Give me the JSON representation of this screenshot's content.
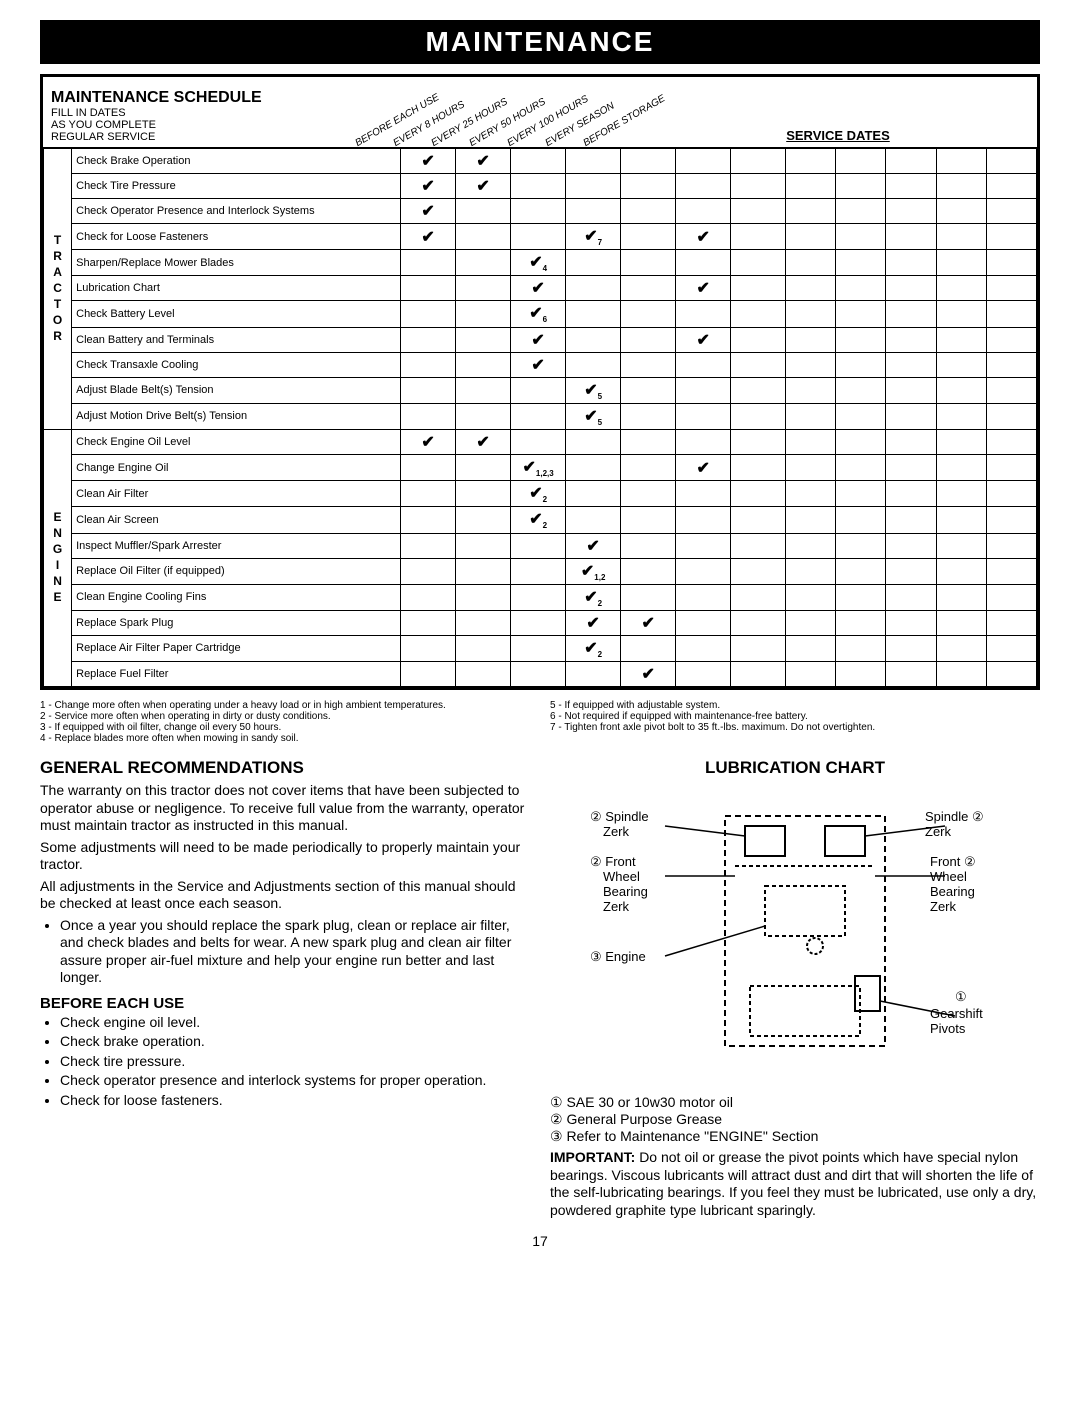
{
  "banner": "MAINTENANCE",
  "schedule": {
    "title": "MAINTENANCE SCHEDULE",
    "subtitle": "FILL IN DATES\nAS YOU COMPLETE\nREGULAR SERVICE",
    "col_headers": [
      "BEFORE EACH USE",
      "EVERY 8 HOURS",
      "EVERY 25 HOURS",
      "EVERY 50 HOURS",
      "EVERY 100 HOURS",
      "EVERY SEASON",
      "BEFORE STORAGE"
    ],
    "service_dates_label": "SERVICE DATES",
    "groups": [
      {
        "label": "TRACTOR",
        "rows": [
          {
            "label": "Check Brake Operation",
            "checks": [
              "✔",
              "✔",
              "",
              "",
              "",
              "",
              ""
            ]
          },
          {
            "label": "Check Tire Pressure",
            "checks": [
              "✔",
              "✔",
              "",
              "",
              "",
              "",
              ""
            ]
          },
          {
            "label": "Check Operator Presence and Interlock Systems",
            "checks": [
              "✔",
              "",
              "",
              "",
              "",
              "",
              ""
            ]
          },
          {
            "label": "Check for Loose Fasteners",
            "checks": [
              "✔",
              "",
              "",
              "✔₇",
              "",
              "✔",
              ""
            ]
          },
          {
            "label": "Sharpen/Replace Mower Blades",
            "checks": [
              "",
              "",
              "✔₄",
              "",
              "",
              "",
              ""
            ]
          },
          {
            "label": "Lubrication Chart",
            "checks": [
              "",
              "",
              "✔",
              "",
              "",
              "✔",
              ""
            ]
          },
          {
            "label": "Check Battery Level",
            "checks": [
              "",
              "",
              "✔₆",
              "",
              "",
              "",
              ""
            ]
          },
          {
            "label": "Clean Battery and Terminals",
            "checks": [
              "",
              "",
              "✔",
              "",
              "",
              "✔",
              ""
            ]
          },
          {
            "label": "Check Transaxle Cooling",
            "checks": [
              "",
              "",
              "✔",
              "",
              "",
              "",
              ""
            ]
          },
          {
            "label": "Adjust Blade Belt(s) Tension",
            "checks": [
              "",
              "",
              "",
              "✔₅",
              "",
              "",
              ""
            ]
          },
          {
            "label": "Adjust Motion Drive Belt(s) Tension",
            "checks": [
              "",
              "",
              "",
              "✔₅",
              "",
              "",
              ""
            ]
          }
        ]
      },
      {
        "label": "ENGINE",
        "rows": [
          {
            "label": "Check Engine Oil Level",
            "checks": [
              "✔",
              "✔",
              "",
              "",
              "",
              "",
              ""
            ]
          },
          {
            "label": "Change Engine Oil",
            "checks": [
              "",
              "",
              "✔₁,₂,₃",
              "",
              "",
              "✔",
              ""
            ]
          },
          {
            "label": "Clean Air Filter",
            "checks": [
              "",
              "",
              "✔₂",
              "",
              "",
              "",
              ""
            ]
          },
          {
            "label": "Clean Air Screen",
            "checks": [
              "",
              "",
              "✔₂",
              "",
              "",
              "",
              ""
            ]
          },
          {
            "label": "Inspect Muffler/Spark Arrester",
            "checks": [
              "",
              "",
              "",
              "✔",
              "",
              "",
              ""
            ]
          },
          {
            "label": "Replace Oil Filter (if equipped)",
            "checks": [
              "",
              "",
              "",
              "✔₁,₂",
              "",
              "",
              ""
            ]
          },
          {
            "label": "Clean Engine Cooling Fins",
            "checks": [
              "",
              "",
              "",
              "✔₂",
              "",
              "",
              ""
            ]
          },
          {
            "label": "Replace Spark Plug",
            "checks": [
              "",
              "",
              "",
              "✔",
              "✔",
              "",
              ""
            ]
          },
          {
            "label": "Replace Air Filter Paper Cartridge",
            "checks": [
              "",
              "",
              "",
              "✔₂",
              "",
              "",
              ""
            ]
          },
          {
            "label": "Replace Fuel Filter",
            "checks": [
              "",
              "",
              "",
              "",
              "✔",
              "",
              ""
            ]
          }
        ]
      }
    ]
  },
  "footnotes_left": [
    "1 - Change more often when operating under a heavy load or in high ambient temperatures.",
    "2 - Service more often when operating in dirty or dusty conditions.",
    "3 - If equipped with oil filter, change oil every 50 hours.",
    "4 - Replace blades more often when mowing in sandy soil."
  ],
  "footnotes_right": [
    "5 - If equipped with adjustable system.",
    "6 - Not required if equipped with maintenance-free battery.",
    "7 - Tighten front axle pivot bolt to 35 ft.-lbs. maximum. Do not overtighten."
  ],
  "left_col": {
    "h1": "GENERAL RECOMMENDATIONS",
    "p1": "The warranty on this tractor does not cover items that have been subjected to operator abuse or negligence. To receive full value from the warranty, operator must maintain tractor as instructed in this manual.",
    "p2": "Some adjustments will need to be made periodically to properly maintain your tractor.",
    "p3": "All adjustments in the Service and Adjustments section of this manual should be checked at least once each season.",
    "bullet1": "Once a year you should replace the spark plug, clean or replace air filter, and check blades and belts for wear. A new spark plug and clean air filter assure proper air-fuel mixture and help your engine run better and last longer.",
    "h2": "BEFORE EACH USE",
    "before_items": [
      "Check engine oil level.",
      "Check brake operation.",
      "Check tire pressure.",
      "Check operator presence and interlock systems for proper operation.",
      "Check for loose fasteners."
    ]
  },
  "right_col": {
    "h1": "LUBRICATION CHART",
    "labels": {
      "spindle_l": "② Spindle\nZerk",
      "spindle_r": "Spindle ②\nZerk",
      "wheel_l": "② Front\nWheel\nBearing\nZerk",
      "wheel_r": "Front ②\nWheel\nBearing\nZerk",
      "engine": "③ Engine",
      "gearshift": "①\nGearshift\nPivots"
    },
    "legend": [
      "① SAE 30 or 10w30 motor oil",
      "② General Purpose Grease",
      "③ Refer to Maintenance \"ENGINE\" Section"
    ],
    "important_label": "IMPORTANT:",
    "important_text": "Do not oil or grease the pivot points which have special nylon bearings. Viscous lubricants will attract dust and dirt that will shorten the life of the self-lubricating bearings. If you feel they must be lubricated, use only a dry, powdered graphite type lubricant sparingly."
  },
  "page_number": "17"
}
